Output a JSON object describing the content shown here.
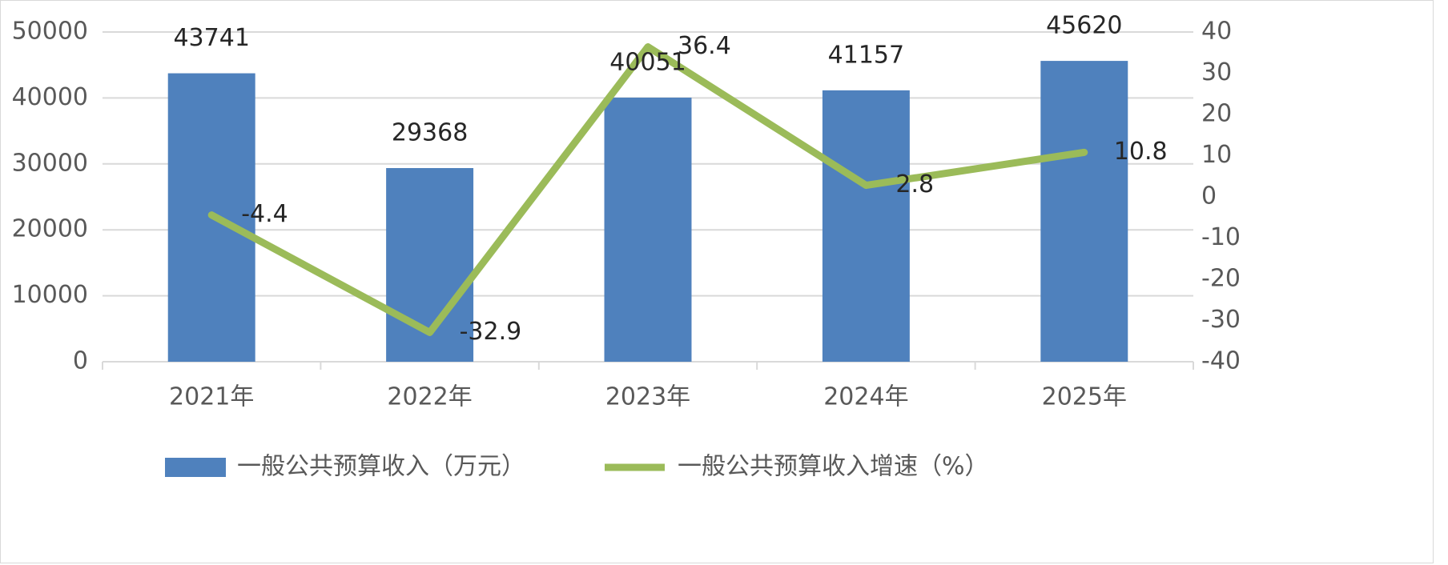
{
  "chart_data": {
    "type": "bar",
    "title": "",
    "xlabel": "",
    "ylabel": "",
    "categories": [
      "2021年",
      "2022年",
      "2023年",
      "2024年",
      "2025年"
    ],
    "series": [
      {
        "name": "一般公共预算收入（万元）",
        "type": "bar",
        "axis": "left",
        "color": "#4f81bd",
        "values": [
          43741,
          29368,
          40051,
          41157,
          45620
        ],
        "labels": [
          "43741",
          "29368",
          "40051",
          "41157",
          "45620"
        ]
      },
      {
        "name": "一般公共预算收入增速（%）",
        "type": "line",
        "axis": "right",
        "color": "#9bbb59",
        "values": [
          -4.4,
          -32.9,
          36.4,
          2.8,
          10.8
        ],
        "labels": [
          "-4.4",
          "-32.9",
          "36.4",
          "2.8",
          "10.8"
        ]
      }
    ],
    "ylim_left": [
      0,
      50000
    ],
    "yticks_left": [
      "0",
      "10000",
      "20000",
      "30000",
      "40000",
      "50000"
    ],
    "ylim_right": [
      -40,
      40
    ],
    "yticks_right": [
      "-40",
      "-30",
      "-20",
      "-10",
      "0",
      "10",
      "20",
      "30",
      "40"
    ],
    "grid": true,
    "legend_position": "bottom"
  }
}
